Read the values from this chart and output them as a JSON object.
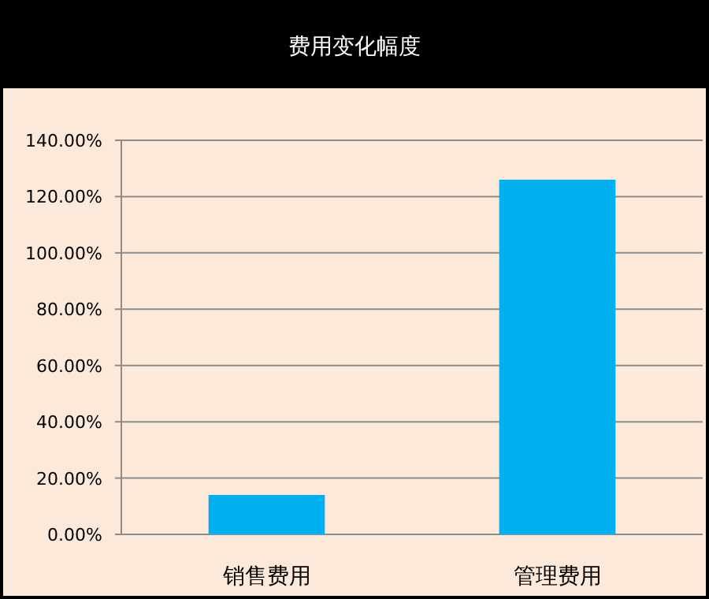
{
  "chart_data": {
    "type": "bar",
    "title": "费用变化幅度",
    "categories": [
      "销售费用",
      "管理费用"
    ],
    "values": [
      14,
      126
    ],
    "color": "#00b0f0",
    "ylim": [
      0,
      140
    ],
    "yticks": [
      {
        "value": 0,
        "label": "0.00%"
      },
      {
        "value": 20,
        "label": "20.00%"
      },
      {
        "value": 40,
        "label": "40.00%"
      },
      {
        "value": 60,
        "label": "60.00%"
      },
      {
        "value": 80,
        "label": "80.00%"
      },
      {
        "value": 100,
        "label": "100.00%"
      },
      {
        "value": 120,
        "label": "120.00%"
      },
      {
        "value": 140,
        "label": "140.00%"
      }
    ],
    "grid": "y",
    "legend": false
  }
}
